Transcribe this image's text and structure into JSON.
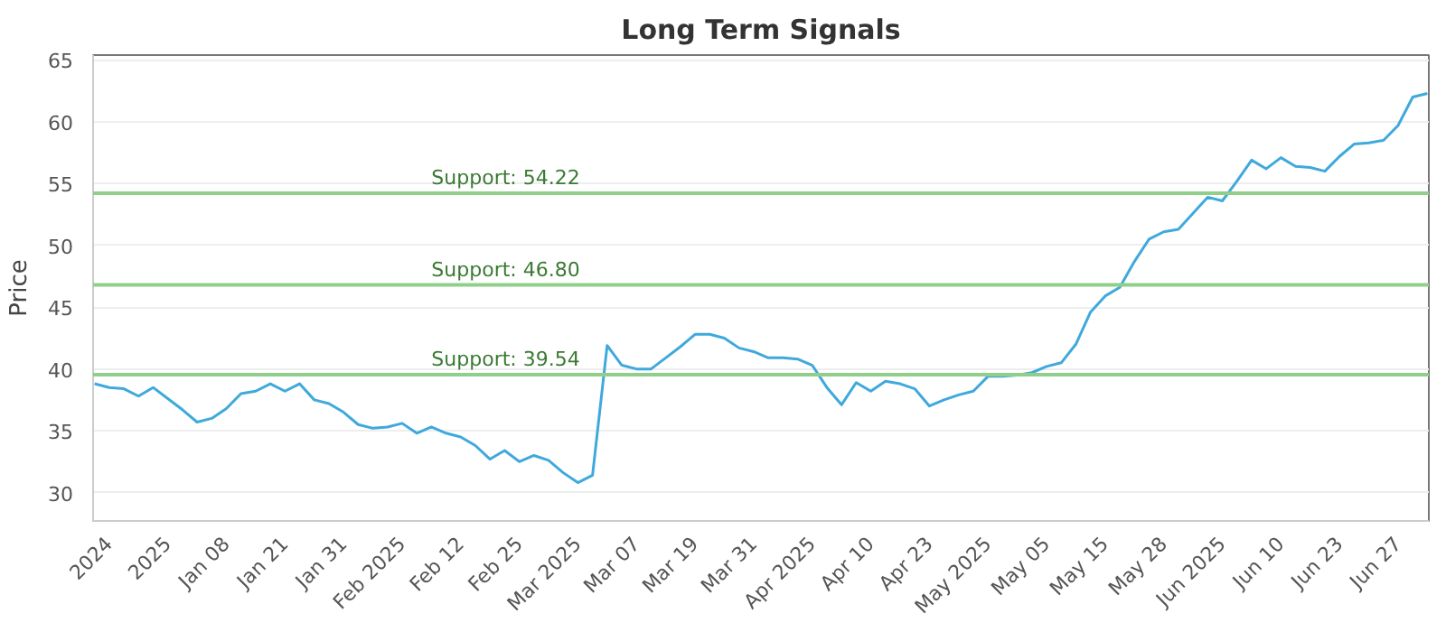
{
  "chart_data": {
    "type": "line",
    "title": "Long Term Signals",
    "ylabel": "Price",
    "categories": [
      null,
      "2024",
      null,
      null,
      null,
      "2025",
      null,
      null,
      null,
      "Jan 08",
      null,
      null,
      null,
      "Jan 21",
      null,
      null,
      null,
      "Jan 31",
      null,
      null,
      null,
      "Feb 2025",
      null,
      null,
      null,
      "Feb 12",
      null,
      null,
      null,
      "Feb 25",
      null,
      null,
      null,
      "Mar 2025",
      null,
      null,
      null,
      "Mar 07",
      null,
      null,
      null,
      "Mar 19",
      null,
      null,
      null,
      "Mar 31",
      null,
      null,
      null,
      "Apr 2025",
      null,
      null,
      null,
      "Apr 10",
      null,
      null,
      null,
      "Apr 23",
      null,
      null,
      null,
      "May 2025",
      null,
      null,
      null,
      "May 05",
      null,
      null,
      null,
      "May 15",
      null,
      null,
      null,
      "May 28",
      null,
      null,
      null,
      "Jun 2025",
      null,
      null,
      null,
      "Jun 10",
      null,
      null,
      null,
      "Jun 23",
      null,
      null,
      null,
      "Jun 27",
      null,
      null
    ],
    "series": [
      {
        "color": "#3fa9dc",
        "values": [
          38.8,
          38.5,
          38.4,
          37.8,
          38.5,
          37.6,
          36.7,
          35.7,
          36.0,
          36.8,
          38.0,
          38.2,
          38.8,
          38.2,
          38.8,
          37.5,
          37.2,
          36.5,
          35.5,
          35.2,
          35.3,
          35.6,
          34.8,
          35.3,
          34.8,
          34.5,
          33.8,
          32.7,
          33.4,
          32.5,
          33.0,
          32.6,
          31.6,
          30.8,
          31.4,
          41.9,
          40.3,
          40.0,
          40.0,
          40.9,
          41.8,
          42.8,
          42.8,
          42.5,
          41.7,
          41.4,
          40.9,
          40.9,
          40.8,
          40.3,
          38.5,
          37.1,
          38.9,
          38.2,
          39.0,
          38.8,
          38.4,
          37.0,
          37.5,
          37.9,
          38.2,
          39.4,
          39.4,
          39.5,
          39.7,
          40.2,
          40.5,
          42.0,
          44.6,
          45.9,
          46.6,
          48.7,
          50.5,
          51.1,
          51.3,
          52.6,
          53.9,
          53.6,
          55.2,
          56.9,
          56.2,
          57.1,
          56.4,
          56.3,
          56.0,
          57.2,
          58.2,
          58.3,
          58.5,
          59.7,
          62.0,
          62.3
        ]
      }
    ],
    "ylim": [
      27.7,
      65.4
    ],
    "yticks": [
      30,
      35,
      40,
      45,
      50,
      55,
      60,
      65
    ],
    "grid": "y",
    "line_style": "solid",
    "ref_lines": [
      {
        "axis": "y",
        "value": 54.22,
        "label": "Support: 54.22",
        "color": "#8fcf8a"
      },
      {
        "axis": "y",
        "value": 46.8,
        "label": "Support: 46.80",
        "color": "#8fcf8a"
      },
      {
        "axis": "y",
        "value": 39.54,
        "label": "Support: 39.54",
        "color": "#8fcf8a"
      }
    ]
  }
}
